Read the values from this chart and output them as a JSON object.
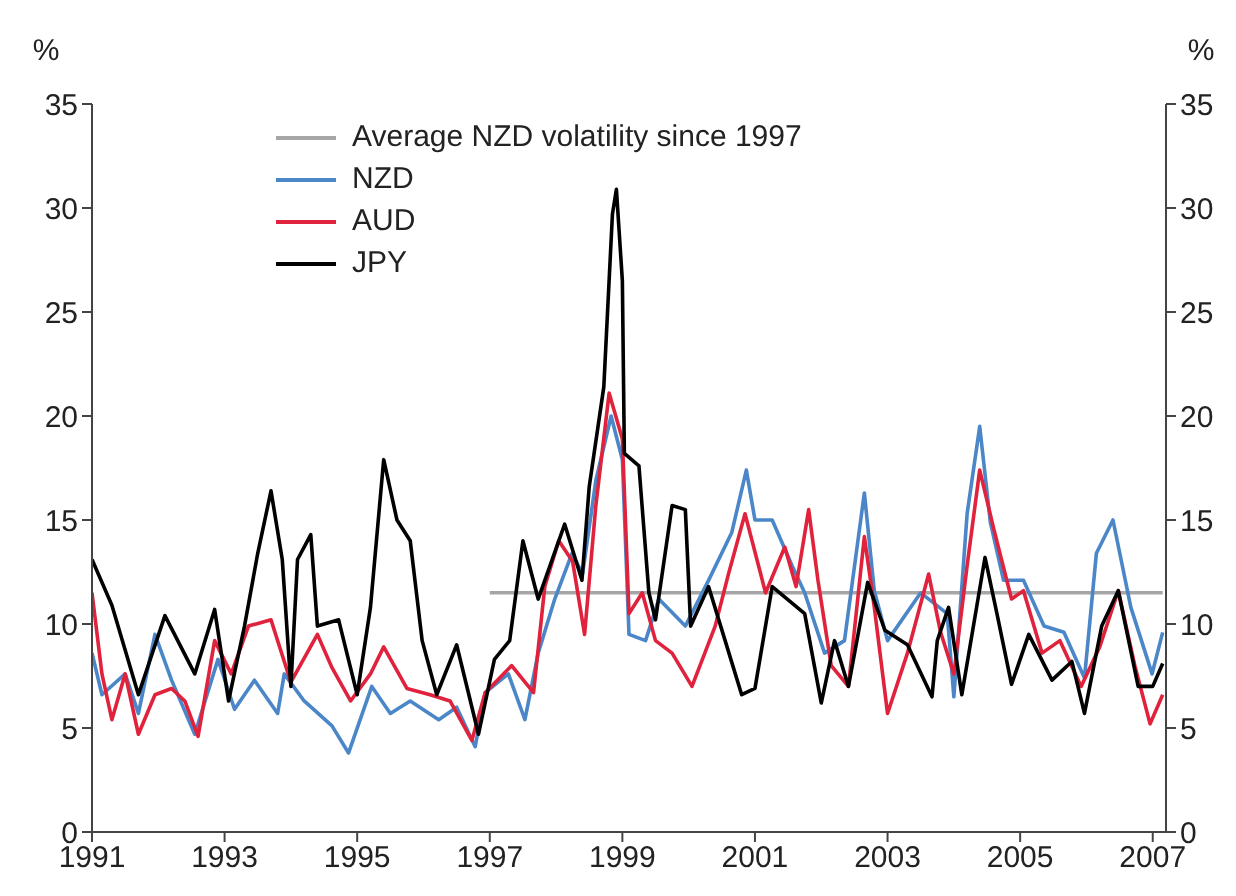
{
  "chart_data": {
    "type": "line",
    "ylabel": "%",
    "y2label": "%",
    "xlim": [
      1991,
      2007.2
    ],
    "xticks": [
      1991,
      1993,
      1995,
      1997,
      1999,
      2001,
      2003,
      2005,
      2007
    ],
    "ylim": [
      0,
      35
    ],
    "yticks": [
      0,
      5,
      10,
      15,
      20,
      25,
      30,
      35
    ],
    "y2lim": [
      0,
      35
    ],
    "y2ticks": [
      0,
      5,
      10,
      15,
      20,
      25,
      30,
      35
    ],
    "grid": false,
    "legend": "top left",
    "marker": "none",
    "series": [
      {
        "name": "Average NZD volatility since 1997",
        "color": "#a6a6a6",
        "x": [
          1997,
          2007.15
        ],
        "values": [
          11.5,
          11.5
        ]
      },
      {
        "name": "NZD",
        "color": "#4a86c8",
        "x": [
          1991.0,
          1991.15,
          1991.5,
          1991.7,
          1991.95,
          1992.2,
          1992.55,
          1992.9,
          1993.15,
          1993.45,
          1993.8,
          1993.9,
          1994.2,
          1994.62,
          1994.87,
          1995.22,
          1995.5,
          1995.8,
          1996.23,
          1996.5,
          1996.78,
          1996.93,
          1997.28,
          1997.53,
          1997.73,
          1997.98,
          1998.24,
          1998.4,
          1998.6,
          1998.83,
          1999.0,
          1999.1,
          1999.35,
          1999.55,
          1999.95,
          2000.3,
          2000.65,
          2000.87,
          2001.0,
          2001.26,
          2001.56,
          2001.75,
          2002.05,
          2002.35,
          2002.65,
          2002.8,
          2003.0,
          2003.5,
          2003.9,
          2004.0,
          2004.2,
          2004.39,
          2004.55,
          2004.75,
          2005.05,
          2005.36,
          2005.66,
          2005.97,
          2006.15,
          2006.4,
          2006.67,
          2006.99,
          2007.15
        ],
        "values": [
          8.6,
          6.6,
          7.6,
          5.7,
          9.5,
          7.3,
          4.7,
          8.3,
          5.9,
          7.3,
          5.7,
          7.6,
          6.3,
          5.1,
          3.8,
          7.0,
          5.7,
          6.3,
          5.4,
          6.0,
          4.1,
          6.7,
          7.6,
          5.4,
          8.6,
          11.2,
          13.4,
          12.4,
          16.9,
          20.0,
          17.9,
          9.5,
          9.2,
          11.2,
          9.9,
          12.1,
          14.4,
          17.4,
          15.0,
          15.0,
          12.8,
          11.5,
          8.6,
          9.2,
          16.3,
          11.6,
          9.2,
          11.5,
          10.5,
          6.5,
          15.3,
          19.5,
          14.9,
          12.1,
          12.1,
          9.9,
          9.6,
          7.4,
          13.4,
          15.0,
          10.8,
          7.6,
          9.6
        ]
      },
      {
        "name": "AUD",
        "color": "#e0223c",
        "x": [
          1991.0,
          1991.15,
          1991.3,
          1991.5,
          1991.7,
          1991.95,
          1992.2,
          1992.4,
          1992.6,
          1992.85,
          1993.1,
          1993.36,
          1993.7,
          1994.0,
          1994.4,
          1994.62,
          1994.9,
          1995.2,
          1995.4,
          1995.75,
          1996.1,
          1996.4,
          1996.73,
          1996.93,
          1997.33,
          1997.66,
          1997.83,
          1998.04,
          1998.25,
          1998.43,
          1998.6,
          1998.8,
          1999.0,
          1999.1,
          1999.3,
          1999.5,
          1999.75,
          2000.05,
          2000.4,
          2000.6,
          2000.85,
          2001.16,
          2001.45,
          2001.62,
          2001.81,
          2001.95,
          2002.15,
          2002.41,
          2002.65,
          2002.8,
          2003.0,
          2003.3,
          2003.62,
          2003.8,
          2004.0,
          2004.2,
          2004.39,
          2004.6,
          2004.87,
          2005.05,
          2005.33,
          2005.6,
          2005.92,
          2006.2,
          2006.48,
          2006.73,
          2006.96,
          2007.15
        ],
        "values": [
          11.5,
          7.6,
          5.4,
          7.6,
          4.7,
          6.6,
          6.9,
          6.3,
          4.6,
          9.2,
          7.6,
          9.9,
          10.2,
          7.2,
          9.5,
          7.9,
          6.3,
          7.6,
          8.9,
          6.9,
          6.6,
          6.3,
          4.4,
          6.7,
          8.0,
          6.7,
          11.8,
          14.0,
          13.0,
          9.5,
          15.7,
          21.1,
          18.9,
          10.5,
          11.5,
          9.2,
          8.6,
          7.0,
          9.9,
          12.4,
          15.3,
          11.5,
          13.7,
          11.8,
          15.5,
          12.1,
          8.0,
          7.0,
          14.2,
          10.8,
          5.7,
          8.6,
          12.4,
          9.6,
          7.6,
          12.8,
          17.4,
          14.6,
          11.2,
          11.6,
          8.6,
          9.2,
          7.0,
          8.9,
          11.6,
          8.0,
          5.2,
          6.6
        ]
      },
      {
        "name": "JPY",
        "color": "#000000",
        "x": [
          1991.0,
          1991.3,
          1991.7,
          1992.1,
          1992.55,
          1992.85,
          1993.06,
          1993.3,
          1993.5,
          1993.7,
          1993.87,
          1994.0,
          1994.1,
          1994.3,
          1994.4,
          1994.72,
          1995.0,
          1995.2,
          1995.4,
          1995.6,
          1995.8,
          1995.98,
          1996.2,
          1996.5,
          1996.83,
          1997.07,
          1997.3,
          1997.5,
          1997.73,
          1998.13,
          1998.39,
          1998.5,
          1998.72,
          1998.85,
          1998.91,
          1999.0,
          1999.03,
          1999.25,
          1999.4,
          1999.5,
          1999.75,
          1999.95,
          2000.03,
          2000.3,
          2000.55,
          2000.8,
          2001.0,
          2001.26,
          2001.75,
          2002.0,
          2002.2,
          2002.41,
          2002.7,
          2002.96,
          2003.3,
          2003.67,
          2003.75,
          2003.92,
          2004.12,
          2004.47,
          2004.65,
          2004.87,
          2005.13,
          2005.48,
          2005.78,
          2005.97,
          2006.23,
          2006.48,
          2006.78,
          2007.0,
          2007.15
        ],
        "values": [
          13.1,
          10.9,
          6.6,
          10.4,
          7.6,
          10.7,
          6.3,
          9.9,
          13.4,
          16.4,
          13.1,
          7.0,
          13.1,
          14.3,
          9.9,
          10.2,
          6.6,
          10.8,
          17.9,
          15.0,
          14.0,
          9.2,
          6.6,
          9.0,
          4.7,
          8.3,
          9.2,
          14.0,
          11.2,
          14.8,
          12.1,
          16.6,
          21.4,
          29.7,
          30.9,
          26.5,
          18.2,
          17.6,
          11.5,
          10.2,
          15.7,
          15.5,
          9.9,
          11.8,
          9.2,
          6.6,
          6.9,
          11.8,
          10.5,
          6.2,
          9.2,
          7.0,
          12.0,
          9.7,
          9.0,
          6.5,
          9.2,
          10.8,
          6.6,
          13.2,
          10.5,
          7.1,
          9.5,
          7.3,
          8.2,
          5.7,
          9.9,
          11.6,
          7.0,
          7.0,
          8.1
        ]
      }
    ]
  }
}
